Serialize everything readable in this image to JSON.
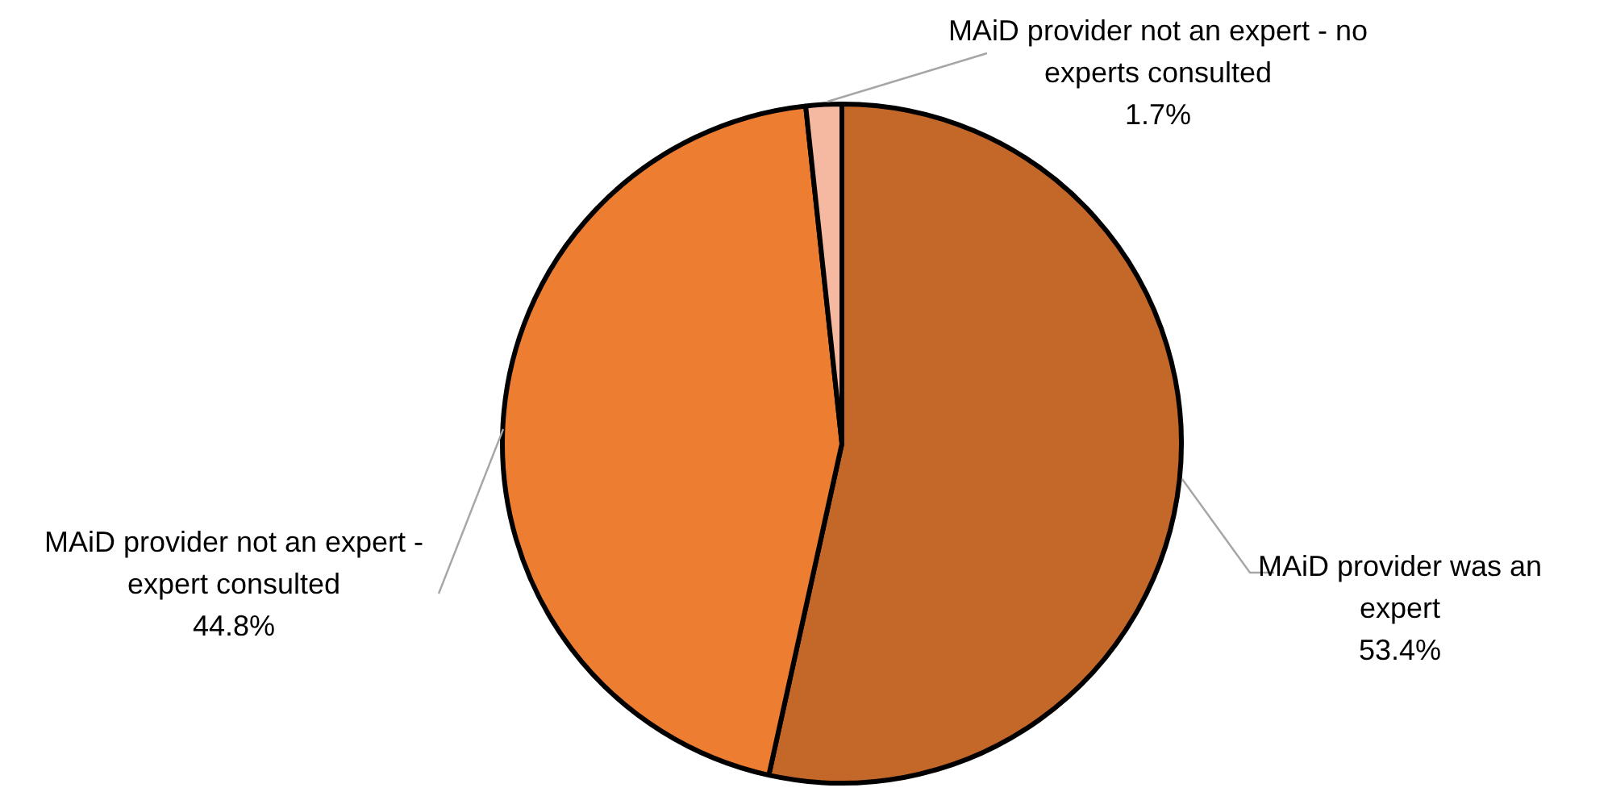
{
  "chart_data": {
    "type": "pie",
    "categories": [
      "MAiD provider was an expert",
      "MAiD provider not an expert - expert consulted",
      "MAiD provider not an expert - no experts consulted"
    ],
    "values": [
      53.4,
      44.8,
      1.7
    ],
    "value_labels": [
      "53.4%",
      "44.8%",
      "1.7%"
    ],
    "colors": [
      "#c4682a",
      "#ed7d31",
      "#f4b9a0"
    ],
    "legend": false
  }
}
